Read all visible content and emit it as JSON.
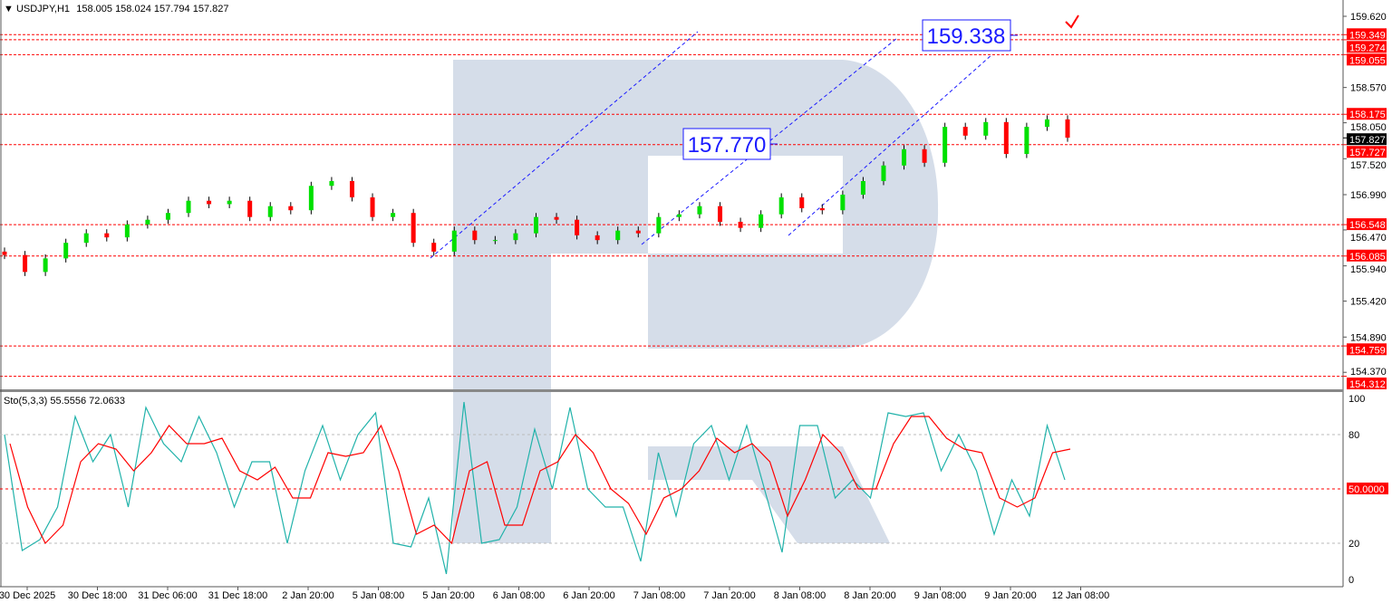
{
  "header": {
    "symbol": "USDJPY,H1",
    "ohlc": "158.005 158.024 157.794 157.827"
  },
  "indicator": {
    "label": "Sto(5,3,3) 55.5556 72.0633",
    "ticks": [
      "100",
      "80",
      "20",
      "0"
    ],
    "level_label": "50.0000"
  },
  "colors": {
    "bull": "#00e000",
    "bear": "#ff0000",
    "level": "#ff0000",
    "trend": "#1a1aff",
    "main_line": "#20b2aa",
    "signal_line": "#ff0000",
    "watermark": "#d5dde9"
  },
  "annotations": [
    {
      "text": "157.770",
      "price": 157.77
    },
    {
      "text": "159.338",
      "price": 159.338
    }
  ],
  "chart_data": [
    {
      "type": "candlestick",
      "title": "USDJPY,H1",
      "yticks": [
        "159.620",
        "158.570",
        "158.050",
        "157.520",
        "156.990",
        "156.470",
        "155.940",
        "155.420",
        "154.890",
        "154.370"
      ],
      "ylim": [
        154.2,
        159.85
      ],
      "current_price": "157.827",
      "levels": [
        "159.349",
        "159.274",
        "159.055",
        "158.175",
        "157.727",
        "156.548",
        "156.085",
        "154.759",
        "154.312"
      ],
      "xticks": [
        "30 Dec 2025",
        "30 Dec 18:00",
        "31 Dec 06:00",
        "31 Dec 18:00",
        "2 Jan 20:00",
        "5 Jan 08:00",
        "5 Jan 20:00",
        "6 Jan 08:00",
        "6 Jan 20:00",
        "7 Jan 08:00",
        "7 Jan 20:00",
        "8 Jan 08:00",
        "8 Jan 20:00",
        "9 Jan 08:00",
        "9 Jan 20:00",
        "12 Jan 08:00"
      ],
      "closes": [
        156.1,
        155.85,
        156.05,
        156.28,
        156.42,
        156.36,
        156.55,
        156.62,
        156.72,
        156.9,
        156.85,
        156.9,
        156.66,
        156.82,
        156.76,
        157.12,
        157.19,
        156.95,
        156.66,
        156.72,
        156.28,
        156.15,
        156.46,
        156.32,
        156.32,
        156.42,
        156.66,
        156.62,
        156.39,
        156.32,
        156.46,
        156.42,
        156.66,
        156.7,
        156.82,
        156.59,
        156.5,
        156.7,
        156.95,
        156.79,
        156.76,
        156.99,
        157.19,
        157.42,
        157.66,
        157.46,
        157.99,
        157.86,
        158.06,
        157.59,
        157.99,
        158.1,
        157.83
      ]
    },
    {
      "type": "line",
      "title": "Sto(5,3,3)",
      "ylim": [
        0,
        100
      ],
      "series": [
        {
          "values": [
            80,
            16,
            22,
            40,
            90,
            65,
            80,
            40,
            95,
            75,
            65,
            90,
            70,
            40,
            65,
            65,
            20,
            60,
            85,
            55,
            80,
            92,
            20,
            18,
            45,
            3,
            98,
            20,
            22,
            40,
            83,
            50,
            95,
            50,
            40,
            40,
            10,
            70,
            35,
            75,
            85,
            55,
            85,
            50,
            15,
            85,
            85,
            45,
            55,
            45,
            92,
            90,
            92,
            60,
            80,
            60,
            25,
            55,
            35,
            85,
            55
          ]
        },
        {
          "values": [
            75,
            40,
            20,
            30,
            65,
            75,
            72,
            60,
            70,
            85,
            75,
            75,
            78,
            60,
            55,
            62,
            45,
            45,
            70,
            68,
            70,
            85,
            60,
            25,
            30,
            20,
            60,
            65,
            30,
            30,
            60,
            65,
            80,
            70,
            50,
            42,
            25,
            45,
            50,
            60,
            78,
            70,
            75,
            65,
            35,
            55,
            80,
            70,
            50,
            50,
            75,
            90,
            90,
            78,
            72,
            70,
            45,
            40,
            45,
            70,
            72
          ]
        }
      ]
    }
  ]
}
